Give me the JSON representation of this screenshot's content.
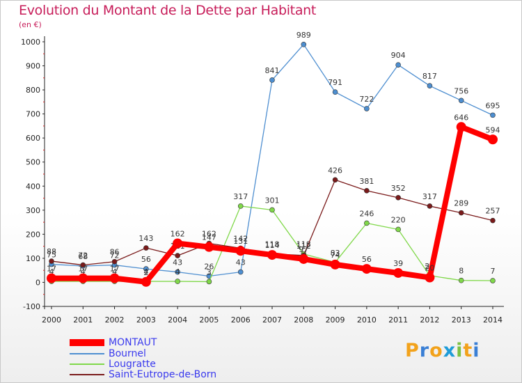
{
  "header": {
    "title": "Evolution du Montant de la Dette par Habitant",
    "unit": "(en €)"
  },
  "brand": {
    "letters": [
      "P",
      "r",
      "o",
      "x",
      "i",
      "t",
      "i"
    ],
    "colors": [
      "#f2a21b",
      "#3a7fd5",
      "#f2a21b",
      "#1e9cd8",
      "#7ac143",
      "#f2a21b",
      "#3a7fd5"
    ]
  },
  "chart_data": {
    "type": "line",
    "x": [
      2000,
      2001,
      2002,
      2003,
      2004,
      2005,
      2006,
      2007,
      2008,
      2009,
      2010,
      2011,
      2012,
      2013,
      2014
    ],
    "ylim": [
      -100,
      1000
    ],
    "yticks": [
      -100,
      0,
      100,
      200,
      300,
      400,
      500,
      600,
      700,
      800,
      900,
      1000
    ],
    "grid": false,
    "legend_position": "bottom-left",
    "series": [
      {
        "name": "MONTAUT",
        "color": "#ff0000",
        "values": [
          17,
          17,
          17,
          2,
          162,
          147,
          131,
          114,
          97,
          74,
          56,
          39,
          20,
          646,
          594
        ],
        "labels": [
          "17",
          "17",
          "17",
          "2",
          "162",
          "147",
          "131",
          "114",
          "97",
          "74",
          "56",
          "39",
          "20",
          "646",
          "594"
        ]
      },
      {
        "name": "Bournel",
        "color": "#4d8ed0",
        "values": [
          75,
          68,
          72,
          56,
          43,
          26,
          43,
          841,
          989,
          791,
          722,
          904,
          817,
          756,
          695
        ],
        "labels": [
          "75",
          "68",
          "72",
          "56",
          "43",
          "26",
          "43",
          "841",
          "989",
          "791",
          "722",
          "904",
          "817",
          "756",
          "695"
        ]
      },
      {
        "name": "Lougratte",
        "color": "#80d84a",
        "values": [
          4,
          4,
          4,
          4,
          4,
          3,
          317,
          301,
          118,
          83,
          246,
          220,
          28,
          8,
          7
        ],
        "labels": [
          "4",
          "4",
          "4",
          "4",
          "4",
          "3",
          "317",
          "301",
          "118",
          "83",
          "246",
          "220",
          "28",
          "8",
          "7"
        ]
      },
      {
        "name": "Saint-Eutrope-de-Born",
        "color": "#7a1a1a",
        "values": [
          88,
          72,
          86,
          143,
          111,
          162,
          142,
          118,
          112,
          426,
          381,
          352,
          317,
          289,
          257
        ],
        "labels": [
          "88",
          "72",
          "86",
          "143",
          "111",
          "162",
          "142",
          "118",
          "112",
          "426",
          "381",
          "352",
          "317",
          "289",
          "257"
        ]
      }
    ]
  }
}
